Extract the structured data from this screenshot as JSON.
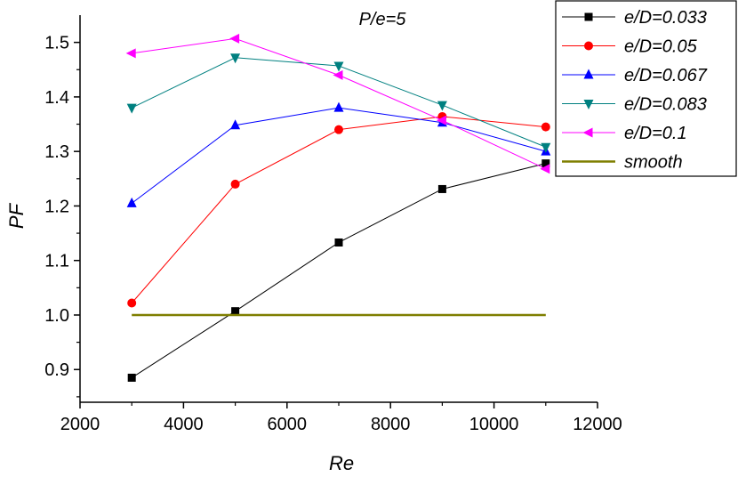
{
  "chart_data": {
    "type": "line",
    "title": "",
    "annotation": "P/e=5",
    "xlabel": "Re",
    "ylabel": "PF",
    "xlim": [
      2000,
      12000
    ],
    "ylim": [
      0.84,
      1.55
    ],
    "xticks": [
      2000,
      4000,
      6000,
      8000,
      10000,
      12000
    ],
    "yticks": [
      0.9,
      1.0,
      1.1,
      1.2,
      1.3,
      1.4,
      1.5
    ],
    "ytick_labels": [
      "0.9",
      "1.0",
      "1.1",
      "1.2",
      "1.3",
      "1.4",
      "1.5"
    ],
    "x": [
      3000,
      5000,
      7000,
      9000,
      11000
    ],
    "legend_position": "top-right",
    "series": [
      {
        "name": "e/D=0.033",
        "color": "#000000",
        "marker": "square",
        "values": [
          0.885,
          1.007,
          1.133,
          1.231,
          1.278
        ]
      },
      {
        "name": "e/D=0.05",
        "color": "#ff0000",
        "marker": "circle",
        "values": [
          1.022,
          1.24,
          1.34,
          1.364,
          1.345
        ]
      },
      {
        "name": "e/D=0.067",
        "color": "#0000ff",
        "marker": "triangle-up",
        "values": [
          1.205,
          1.348,
          1.38,
          1.353,
          1.3
        ]
      },
      {
        "name": "e/D=0.083",
        "color": "#008080",
        "marker": "triangle-down",
        "values": [
          1.38,
          1.472,
          1.457,
          1.385,
          1.308
        ]
      },
      {
        "name": "e/D=0.1",
        "color": "#ff00ff",
        "marker": "triangle-left",
        "values": [
          1.48,
          1.507,
          1.44,
          1.357,
          1.268
        ]
      },
      {
        "name": "smooth",
        "color": "#7f7f00",
        "marker": "none",
        "values": [
          1.0,
          1.0,
          1.0,
          1.0,
          1.0
        ]
      }
    ]
  }
}
